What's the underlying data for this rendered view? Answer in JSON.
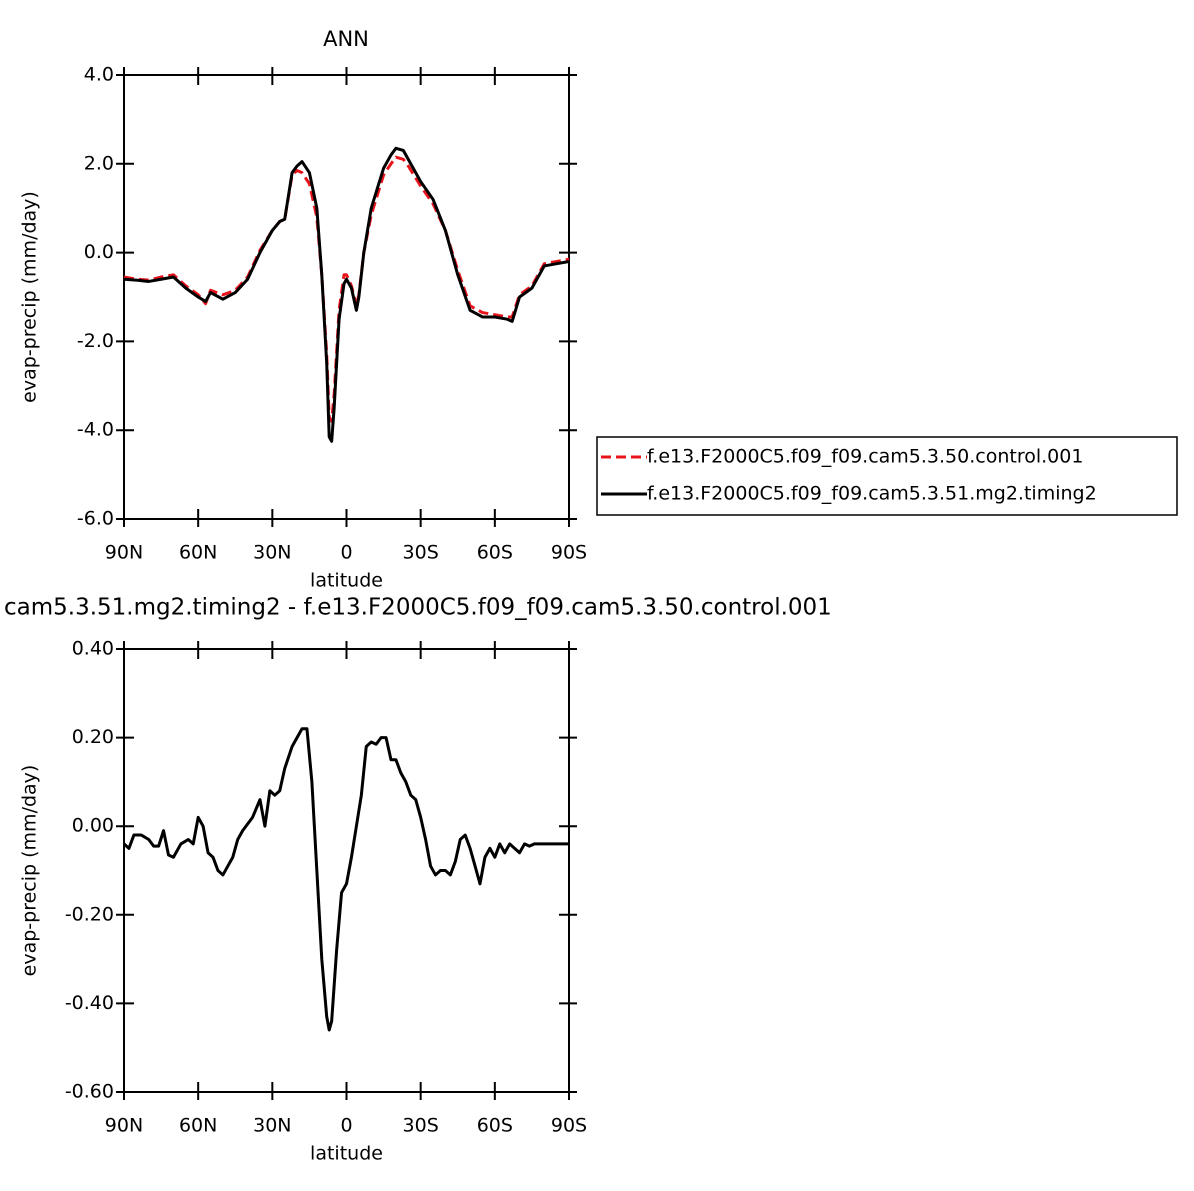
{
  "chart_data": [
    {
      "type": "line",
      "title": "ANN",
      "xlabel": "latitude",
      "ylabel": "evap-precip (mm/day)",
      "xlim": [
        90,
        -90
      ],
      "ylim": [
        -6,
        4
      ],
      "xticks": [
        {
          "value": 90,
          "label": "90N"
        },
        {
          "value": 60,
          "label": "60N"
        },
        {
          "value": 30,
          "label": "30N"
        },
        0,
        {
          "value": -30,
          "label": "30S"
        },
        {
          "value": -60,
          "label": "60S"
        },
        {
          "value": -90,
          "label": "90S"
        }
      ],
      "yticks": [
        {
          "value": -6,
          "label": "-6.0"
        },
        {
          "value": -4,
          "label": "-4.0"
        },
        {
          "value": -2,
          "label": "-2.0"
        },
        {
          "value": 0,
          "label": "0.0"
        },
        {
          "value": 2,
          "label": "2.0"
        },
        {
          "value": 4,
          "label": "4.0"
        }
      ],
      "legend": "right",
      "x": [
        90,
        85,
        80,
        75,
        70,
        65,
        60,
        57,
        55,
        50,
        45,
        40,
        35,
        30,
        27,
        25,
        22,
        20,
        18,
        15,
        12,
        10,
        8,
        7,
        6,
        5,
        3,
        1,
        0,
        -2,
        -4,
        -5,
        -7,
        -10,
        -15,
        -18,
        -20,
        -23,
        -25,
        -30,
        -35,
        -40,
        -45,
        -50,
        -55,
        -60,
        -65,
        -67,
        -70,
        -75,
        -80,
        -85,
        -90
      ],
      "series": [
        {
          "name": "f.e13.F2000C5.f09_f09.cam5.3.50.control.001",
          "color": "#e8141c",
          "style": "dashed",
          "values": [
            -0.55,
            -0.6,
            -0.62,
            -0.55,
            -0.5,
            -0.75,
            -0.95,
            -1.15,
            -0.85,
            -0.95,
            -0.85,
            -0.55,
            0.05,
            0.5,
            0.7,
            0.75,
            1.75,
            1.85,
            1.8,
            1.55,
            0.8,
            -0.5,
            -2.3,
            -3.7,
            -3.8,
            -3.2,
            -1.3,
            -0.5,
            -0.5,
            -0.75,
            -1.2,
            -0.95,
            0.0,
            0.85,
            1.75,
            2.0,
            2.15,
            2.1,
            1.95,
            1.5,
            1.1,
            0.5,
            -0.4,
            -1.2,
            -1.35,
            -1.4,
            -1.45,
            -1.45,
            -0.95,
            -0.75,
            -0.25,
            -0.2,
            -0.15
          ]
        },
        {
          "name": "f.e13.F2000C5.f09_f09.cam5.3.51.mg2.timing2",
          "color": "#000000",
          "style": "solid",
          "values": [
            -0.6,
            -0.62,
            -0.65,
            -0.6,
            -0.55,
            -0.8,
            -1.0,
            -1.1,
            -0.9,
            -1.05,
            -0.9,
            -0.6,
            0.0,
            0.5,
            0.7,
            0.75,
            1.8,
            1.95,
            2.05,
            1.8,
            1.0,
            -0.5,
            -2.5,
            -4.15,
            -4.25,
            -3.5,
            -1.5,
            -0.7,
            -0.6,
            -0.8,
            -1.3,
            -1.0,
            0.0,
            1.0,
            1.9,
            2.2,
            2.35,
            2.3,
            2.1,
            1.6,
            1.2,
            0.5,
            -0.5,
            -1.3,
            -1.45,
            -1.45,
            -1.5,
            -1.55,
            -1.0,
            -0.8,
            -0.3,
            -0.25,
            -0.2
          ]
        }
      ]
    },
    {
      "type": "line",
      "title": "cam5.3.51.mg2.timing2 - f.e13.F2000C5.f09_f09.cam5.3.50.control.001",
      "xlabel": "latitude",
      "ylabel": "evap-precip (mm/day)",
      "xlim": [
        90,
        -90
      ],
      "ylim": [
        -0.6,
        0.4
      ],
      "xticks": [
        {
          "value": 90,
          "label": "90N"
        },
        {
          "value": 60,
          "label": "60N"
        },
        {
          "value": 30,
          "label": "30N"
        },
        0,
        {
          "value": -30,
          "label": "30S"
        },
        {
          "value": -60,
          "label": "60S"
        },
        {
          "value": -90,
          "label": "90S"
        }
      ],
      "yticks": [
        {
          "value": -0.6,
          "label": "-0.60"
        },
        {
          "value": -0.4,
          "label": "-0.40"
        },
        {
          "value": -0.2,
          "label": "-0.20"
        },
        {
          "value": 0,
          "label": "0.00"
        },
        {
          "value": 0.2,
          "label": "0.20"
        },
        {
          "value": 0.4,
          "label": "0.40"
        }
      ],
      "x": [
        90,
        88,
        86,
        83,
        80,
        78,
        76,
        74,
        72,
        70,
        67,
        64,
        62,
        60,
        58,
        56,
        54,
        52,
        50,
        48,
        46,
        44,
        42,
        38,
        35,
        33,
        31,
        29,
        27,
        25,
        22,
        20,
        18,
        16,
        14,
        12,
        10,
        8,
        7,
        6,
        4,
        2,
        0,
        -2,
        -4,
        -6,
        -8,
        -10,
        -12,
        -14,
        -16,
        -18,
        -20,
        -22,
        -24,
        -26,
        -28,
        -30,
        -32,
        -34,
        -36,
        -38,
        -40,
        -42,
        -44,
        -46,
        -48,
        -50,
        -52,
        -54,
        -56,
        -58,
        -60,
        -62,
        -64,
        -66,
        -68,
        -70,
        -72,
        -74,
        -76,
        -78,
        -90
      ],
      "series": [
        {
          "color": "#000000",
          "style": "solid",
          "values": [
            -0.04,
            -0.05,
            -0.02,
            -0.02,
            -0.03,
            -0.045,
            -0.045,
            -0.01,
            -0.065,
            -0.07,
            -0.04,
            -0.03,
            -0.04,
            0.02,
            0.0,
            -0.06,
            -0.07,
            -0.1,
            -0.11,
            -0.09,
            -0.07,
            -0.03,
            -0.01,
            0.02,
            0.06,
            0.0,
            0.08,
            0.07,
            0.08,
            0.13,
            0.18,
            0.2,
            0.22,
            0.22,
            0.1,
            -0.1,
            -0.3,
            -0.43,
            -0.46,
            -0.44,
            -0.28,
            -0.15,
            -0.13,
            -0.07,
            0.0,
            0.07,
            0.18,
            0.19,
            0.185,
            0.2,
            0.2,
            0.15,
            0.15,
            0.12,
            0.1,
            0.07,
            0.06,
            0.02,
            -0.03,
            -0.09,
            -0.11,
            -0.1,
            -0.1,
            -0.11,
            -0.08,
            -0.03,
            -0.02,
            -0.05,
            -0.09,
            -0.13,
            -0.07,
            -0.05,
            -0.07,
            -0.04,
            -0.06,
            -0.04,
            -0.05,
            -0.06,
            -0.04,
            -0.045,
            -0.04,
            -0.04,
            -0.04
          ]
        }
      ]
    }
  ]
}
